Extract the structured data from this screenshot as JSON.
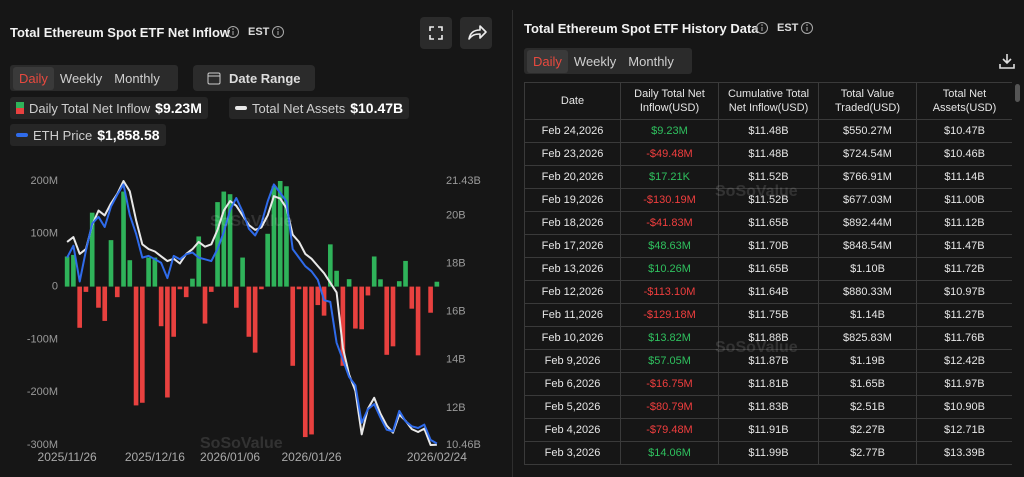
{
  "left_panel": {
    "title": "Total Ethereum Spot ETF Net Inflow",
    "timezone": "EST",
    "tabs": [
      "Daily",
      "Weekly",
      "Monthly"
    ],
    "active_tab": 0,
    "date_range": "Date Range"
  },
  "chart_data": {
    "type": "bar",
    "categories": [
      "2025/11/26",
      null,
      null,
      null,
      null,
      null,
      null,
      null,
      null,
      null,
      null,
      null,
      null,
      null,
      "2025/12/16",
      null,
      null,
      null,
      null,
      null,
      null,
      null,
      null,
      null,
      null,
      null,
      "2026/01/06",
      null,
      null,
      null,
      null,
      null,
      null,
      null,
      null,
      null,
      null,
      null,
      null,
      "2026/01/26",
      null,
      null,
      null,
      null,
      null,
      null,
      null,
      null,
      null,
      null,
      null,
      null,
      null,
      null,
      null,
      null,
      null,
      null,
      null,
      "2026/02/24"
    ],
    "series": [
      {
        "name": "Daily Total Net Inflow",
        "type": "bar",
        "color": "#2fb35a",
        "negative_color": "#e8413f",
        "legend_value": "$9.23M",
        "values": [
          57,
          60,
          -78,
          -10,
          140,
          -40,
          -65,
          88,
          -20,
          180,
          50,
          -225,
          -220,
          55,
          55,
          -75,
          -210,
          -95,
          -5,
          -20,
          15,
          95,
          -70,
          -10,
          160,
          180,
          175,
          -40,
          55,
          -95,
          -125,
          -5,
          100,
          190,
          200,
          190,
          -150,
          -5,
          -285,
          -280,
          -35,
          -55,
          80,
          30,
          -150,
          14.06,
          -79.48,
          -80.79,
          -16.75,
          57.05,
          13.82,
          -129.18,
          -113.1,
          10.26,
          48.63,
          -41.83,
          -130.19,
          0.01721,
          -49.48,
          9.23
        ]
      },
      {
        "name": "Total Net Assets",
        "type": "line",
        "axis": "y2",
        "color": "#e8e8e8",
        "legend_value": "$10.47B",
        "values": [
          18.9,
          19.1,
          18.4,
          18.6,
          19.6,
          20.2,
          20.0,
          20.5,
          20.9,
          21.43,
          21.0,
          19.8,
          18.8,
          18.6,
          18.5,
          18.3,
          18.1,
          18.2,
          18.0,
          18.4,
          18.6,
          18.9,
          18.7,
          18.8,
          19.4,
          20.2,
          20.6,
          20.4,
          20.0,
          19.6,
          19.4,
          19.5,
          20.0,
          20.8,
          20.7,
          20.3,
          19.2,
          18.9,
          18.4,
          18.2,
          17.9,
          17.6,
          17.2,
          16.8,
          14.5,
          13.39,
          12.71,
          10.9,
          11.97,
          12.42,
          11.76,
          11.27,
          10.97,
          11.72,
          11.47,
          11.12,
          11.0,
          11.14,
          10.46,
          10.47
        ]
      },
      {
        "name": "ETH Price",
        "type": "line",
        "axis": "y3",
        "color": "#2f6bea",
        "legend_value": "$1,858.58",
        "values": [
          2950,
          3020,
          2810,
          2990,
          3150,
          3190,
          3130,
          3250,
          3320,
          3380,
          3200,
          3090,
          2950,
          2960,
          2940,
          2920,
          2830,
          2960,
          2940,
          2970,
          2980,
          2950,
          2940,
          2930,
          3000,
          3100,
          3230,
          3300,
          3220,
          3120,
          3080,
          3150,
          3280,
          3380,
          3330,
          3280,
          3000,
          2950,
          2900,
          2870,
          2820,
          2700,
          2690,
          2450,
          2350,
          2250,
          2200,
          1980,
          2060,
          2090,
          2010,
          1940,
          1930,
          2050,
          1990,
          1960,
          1950,
          1970,
          1880,
          1858.58
        ]
      }
    ],
    "ylim": [
      -300,
      200
    ],
    "yticks": [
      {
        "value": 200,
        "label": "200M"
      },
      {
        "value": 100,
        "label": "100M"
      },
      0,
      {
        "value": -100,
        "label": "-100M"
      },
      {
        "value": -200,
        "label": "-200M"
      },
      {
        "value": -300,
        "label": "-300M"
      }
    ],
    "y2lim": [
      10.46,
      21.43
    ],
    "y2ticks": [
      {
        "value": 21.43,
        "label": "21.43B"
      },
      {
        "value": 20,
        "label": "20B"
      },
      {
        "value": 18,
        "label": "18B"
      },
      {
        "value": 16,
        "label": "16B"
      },
      {
        "value": 14,
        "label": "14B"
      },
      {
        "value": 12,
        "label": "12B"
      },
      {
        "value": 10.46,
        "label": "10.46B"
      }
    ],
    "y3lim": [
      1850,
      3400
    ],
    "grid": false
  },
  "right_panel": {
    "title": "Total Ethereum Spot ETF History Data",
    "timezone": "EST",
    "tabs": [
      "Daily",
      "Weekly",
      "Monthly"
    ],
    "active_tab": 0,
    "table": {
      "positive_color": "#2fc05e",
      "negative_color": "#f03e3e",
      "columns": [
        "Date",
        "Daily Total Net Inflow(USD)",
        "Cumulative Total Net Inflow(USD)",
        "Total Value Traded(USD)",
        "Total Net Assets(USD)"
      ],
      "rows": [
        [
          "Feb 24,2026",
          "$9.23M",
          "$11.48B",
          "$550.27M",
          "$10.47B"
        ],
        [
          "Feb 23,2026",
          "-$49.48M",
          "$11.48B",
          "$724.54M",
          "$10.46B"
        ],
        [
          "Feb 20,2026",
          "$17.21K",
          "$11.52B",
          "$766.91M",
          "$11.14B"
        ],
        [
          "Feb 19,2026",
          "-$130.19M",
          "$11.52B",
          "$677.03M",
          "$11.00B"
        ],
        [
          "Feb 18,2026",
          "-$41.83M",
          "$11.65B",
          "$892.44M",
          "$11.12B"
        ],
        [
          "Feb 17,2026",
          "$48.63M",
          "$11.70B",
          "$848.54M",
          "$11.47B"
        ],
        [
          "Feb 13,2026",
          "$10.26M",
          "$11.65B",
          "$1.10B",
          "$11.72B"
        ],
        [
          "Feb 12,2026",
          "-$113.10M",
          "$11.64B",
          "$880.33M",
          "$10.97B"
        ],
        [
          "Feb 11,2026",
          "-$129.18M",
          "$11.75B",
          "$1.14B",
          "$11.27B"
        ],
        [
          "Feb 10,2026",
          "$13.82M",
          "$11.88B",
          "$825.83M",
          "$11.76B"
        ],
        [
          "Feb 9,2026",
          "$57.05M",
          "$11.87B",
          "$1.19B",
          "$12.42B"
        ],
        [
          "Feb 6,2026",
          "-$16.75M",
          "$11.81B",
          "$1.65B",
          "$11.97B"
        ],
        [
          "Feb 5,2026",
          "-$80.79M",
          "$11.83B",
          "$2.51B",
          "$10.90B"
        ],
        [
          "Feb 4,2026",
          "-$79.48M",
          "$11.91B",
          "$2.27B",
          "$12.71B"
        ],
        [
          "Feb 3,2026",
          "$14.06M",
          "$11.99B",
          "$2.77B",
          "$13.39B"
        ]
      ]
    }
  },
  "watermark": "SoSoValue"
}
